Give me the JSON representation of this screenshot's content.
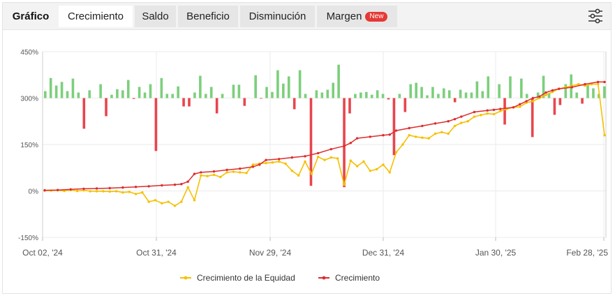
{
  "tabs": {
    "title": "Gráfico",
    "items": [
      {
        "label": "Crecimiento",
        "active": true
      },
      {
        "label": "Saldo"
      },
      {
        "label": "Beneficio"
      },
      {
        "label": "Disminución"
      },
      {
        "label": "Margen",
        "badge": "New"
      }
    ]
  },
  "icons": {
    "settings": "sliders-icon"
  },
  "colors": {
    "equity": "#f5c000",
    "growth": "#dd2c2c",
    "bar_positive": "#7ccf7c",
    "bar_negative": "#e8454e",
    "grid": "#ebebeb"
  },
  "chart_data": {
    "type": "line",
    "yticks": [
      "450%",
      "300%",
      "150%",
      "0%",
      "-150%"
    ],
    "ylim": [
      -150,
      450
    ],
    "xticks": [
      "Oct 02, '24",
      "Oct 31, '24",
      "Nov 29, '24",
      "Dec 31, '24",
      "Jan 30, '25",
      "Feb 28, '25"
    ],
    "x_day_range": [
      0,
      149
    ],
    "series": [
      {
        "name": "Crecimiento de la Equidad",
        "color": "#f5c000",
        "points": [
          [
            0,
            1
          ],
          [
            3,
            1
          ],
          [
            6,
            2
          ],
          [
            9,
            0
          ],
          [
            12,
            3
          ],
          [
            15,
            0
          ],
          [
            18,
            2
          ],
          [
            21,
            -1
          ],
          [
            24,
            -1
          ],
          [
            27,
            -1
          ],
          [
            30,
            -2
          ],
          [
            33,
            -1
          ],
          [
            36,
            -5
          ],
          [
            39,
            -3
          ],
          [
            42,
            -10
          ],
          [
            45,
            -5
          ],
          [
            48,
            -35
          ],
          [
            51,
            -30
          ],
          [
            54,
            -40
          ],
          [
            57,
            -35
          ],
          [
            60,
            -48
          ],
          [
            63,
            -35
          ],
          [
            66,
            12
          ],
          [
            69,
            -30
          ],
          [
            72,
            50
          ],
          [
            75,
            48
          ],
          [
            78,
            52
          ],
          [
            81,
            45
          ],
          [
            84,
            60
          ],
          [
            87,
            62
          ],
          [
            90,
            60
          ],
          [
            93,
            58
          ],
          [
            96,
            85
          ],
          [
            99,
            88
          ],
          [
            102,
            90
          ],
          [
            105,
            92
          ],
          [
            108,
            95
          ],
          [
            111,
            88
          ],
          [
            114,
            65
          ],
          [
            117,
            50
          ],
          [
            120,
            95
          ],
          [
            123,
            55
          ],
          [
            126,
            110
          ],
          [
            129,
            100
          ],
          [
            132,
            108
          ],
          [
            135,
            105
          ],
          [
            138,
            20
          ],
          [
            141,
            98
          ],
          [
            144,
            80
          ],
          [
            147,
            95
          ],
          [
            150,
            65
          ],
          [
            153,
            70
          ],
          [
            156,
            85
          ],
          [
            159,
            60
          ],
          [
            162,
            125
          ],
          [
            165,
            150
          ],
          [
            168,
            180
          ],
          [
            171,
            175
          ],
          [
            174,
            172
          ],
          [
            177,
            170
          ],
          [
            180,
            185
          ],
          [
            183,
            190
          ],
          [
            186,
            185
          ],
          [
            189,
            210
          ],
          [
            192,
            220
          ],
          [
            195,
            225
          ],
          [
            198,
            240
          ],
          [
            201,
            245
          ],
          [
            204,
            250
          ],
          [
            207,
            248
          ],
          [
            210,
            258
          ],
          [
            213,
            265
          ],
          [
            216,
            270
          ],
          [
            219,
            272
          ],
          [
            222,
            285
          ],
          [
            225,
            290
          ],
          [
            228,
            300
          ],
          [
            231,
            310
          ],
          [
            234,
            320
          ],
          [
            237,
            330
          ],
          [
            240,
            335
          ],
          [
            243,
            340
          ],
          [
            246,
            345
          ],
          [
            249,
            340
          ],
          [
            252,
            345
          ],
          [
            255,
            345
          ],
          [
            258,
            180
          ]
        ]
      },
      {
        "name": "Crecimiento",
        "color": "#dd2c2c",
        "points": [
          [
            0,
            2
          ],
          [
            6,
            3
          ],
          [
            12,
            5
          ],
          [
            18,
            7
          ],
          [
            24,
            8
          ],
          [
            30,
            9
          ],
          [
            36,
            11
          ],
          [
            42,
            13
          ],
          [
            48,
            15
          ],
          [
            54,
            18
          ],
          [
            60,
            20
          ],
          [
            63,
            22
          ],
          [
            66,
            30
          ],
          [
            69,
            55
          ],
          [
            72,
            60
          ],
          [
            78,
            63
          ],
          [
            84,
            68
          ],
          [
            90,
            72
          ],
          [
            96,
            78
          ],
          [
            99,
            85
          ],
          [
            102,
            100
          ],
          [
            108,
            103
          ],
          [
            114,
            108
          ],
          [
            120,
            112
          ],
          [
            126,
            122
          ],
          [
            132,
            135
          ],
          [
            138,
            145
          ],
          [
            141,
            155
          ],
          [
            144,
            170
          ],
          [
            150,
            175
          ],
          [
            156,
            180
          ],
          [
            159,
            182
          ],
          [
            162,
            195
          ],
          [
            168,
            203
          ],
          [
            174,
            210
          ],
          [
            180,
            218
          ],
          [
            186,
            225
          ],
          [
            189,
            232
          ],
          [
            192,
            240
          ],
          [
            198,
            255
          ],
          [
            204,
            260
          ],
          [
            207,
            262
          ],
          [
            210,
            265
          ],
          [
            216,
            270
          ],
          [
            219,
            280
          ],
          [
            222,
            290
          ],
          [
            225,
            300
          ],
          [
            228,
            305
          ],
          [
            231,
            318
          ],
          [
            234,
            325
          ],
          [
            237,
            330
          ],
          [
            243,
            335
          ],
          [
            249,
            345
          ],
          [
            255,
            352
          ],
          [
            258,
            352
          ]
        ]
      }
    ],
    "bars": [
      [
        0,
        25
      ],
      [
        3,
        72
      ],
      [
        6,
        45
      ],
      [
        9,
        58
      ],
      [
        12,
        25
      ],
      [
        15,
        70
      ],
      [
        18,
        20
      ],
      [
        21,
        -110
      ],
      [
        24,
        28
      ],
      [
        27,
        0
      ],
      [
        30,
        50
      ],
      [
        33,
        -65
      ],
      [
        36,
        12
      ],
      [
        39,
        32
      ],
      [
        42,
        28
      ],
      [
        45,
        65
      ],
      [
        48,
        -3
      ],
      [
        51,
        40
      ],
      [
        54,
        20
      ],
      [
        57,
        50
      ],
      [
        60,
        -190
      ],
      [
        63,
        72
      ],
      [
        66,
        15
      ],
      [
        69,
        15
      ],
      [
        72,
        42
      ],
      [
        75,
        -30
      ],
      [
        78,
        -30
      ],
      [
        81,
        20
      ],
      [
        84,
        80
      ],
      [
        87,
        15
      ],
      [
        90,
        40
      ],
      [
        93,
        -55
      ],
      [
        96,
        15
      ],
      [
        99,
        0
      ],
      [
        102,
        48
      ],
      [
        105,
        48
      ],
      [
        108,
        -28
      ],
      [
        111,
        0
      ],
      [
        114,
        82
      ],
      [
        117,
        -2
      ],
      [
        120,
        40
      ],
      [
        123,
        22
      ],
      [
        126,
        100
      ],
      [
        129,
        52
      ],
      [
        132,
        78
      ],
      [
        135,
        -40
      ],
      [
        138,
        100
      ],
      [
        141,
        15
      ],
      [
        144,
        -315
      ],
      [
        147,
        28
      ],
      [
        150,
        20
      ],
      [
        153,
        30
      ],
      [
        156,
        55
      ],
      [
        159,
        120
      ],
      [
        162,
        -320
      ],
      [
        165,
        -55
      ],
      [
        168,
        15
      ],
      [
        171,
        20
      ],
      [
        174,
        22
      ],
      [
        177,
        12
      ],
      [
        180,
        28
      ],
      [
        183,
        15
      ],
      [
        186,
        -5
      ],
      [
        189,
        -205
      ],
      [
        192,
        15
      ],
      [
        195,
        -50
      ],
      [
        198,
        50
      ],
      [
        201,
        55
      ],
      [
        204,
        40
      ],
      [
        207,
        10
      ],
      [
        210,
        40
      ],
      [
        213,
        15
      ],
      [
        216,
        35
      ],
      [
        219,
        28
      ],
      [
        222,
        -15
      ],
      [
        225,
        30
      ],
      [
        228,
        20
      ],
      [
        231,
        20
      ],
      [
        234,
        60
      ],
      [
        237,
        25
      ],
      [
        240,
        78
      ],
      [
        243,
        0
      ],
      [
        246,
        50
      ],
      [
        249,
        -95
      ],
      [
        252,
        78
      ],
      [
        255,
        0
      ],
      [
        258,
        70
      ],
      [
        261,
        15
      ],
      [
        264,
        -140
      ],
      [
        267,
        20
      ],
      [
        270,
        80
      ],
      [
        273,
        18
      ],
      [
        276,
        -60
      ],
      [
        279,
        -25
      ],
      [
        282,
        50
      ],
      [
        285,
        85
      ],
      [
        288,
        20
      ],
      [
        291,
        -20
      ],
      [
        294,
        45
      ],
      [
        297,
        35
      ],
      [
        300,
        15
      ],
      [
        303,
        42
      ]
    ],
    "legend_position": "bottom"
  }
}
